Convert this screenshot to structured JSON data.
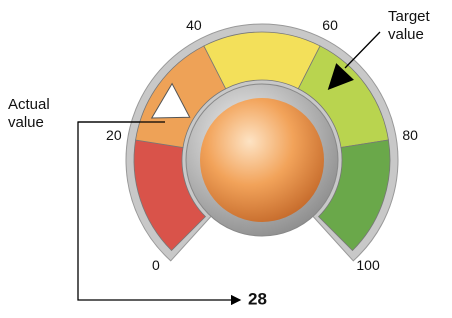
{
  "chart_data": {
    "type": "gauge",
    "ylim": [
      0,
      100
    ],
    "yticks": [
      0,
      20,
      40,
      60,
      80,
      100
    ],
    "bands": [
      {
        "from": 0,
        "to": 20,
        "color": "#d9534a"
      },
      {
        "from": 20,
        "to": 40,
        "color": "#eea257"
      },
      {
        "from": 40,
        "to": 60,
        "color": "#f3e05a"
      },
      {
        "from": 60,
        "to": 80,
        "color": "#b9d44f"
      },
      {
        "from": 80,
        "to": 100,
        "color": "#6aa84a"
      }
    ],
    "value": 28,
    "target": 66,
    "annotations": [
      "Actual value",
      "Target value"
    ]
  }
}
